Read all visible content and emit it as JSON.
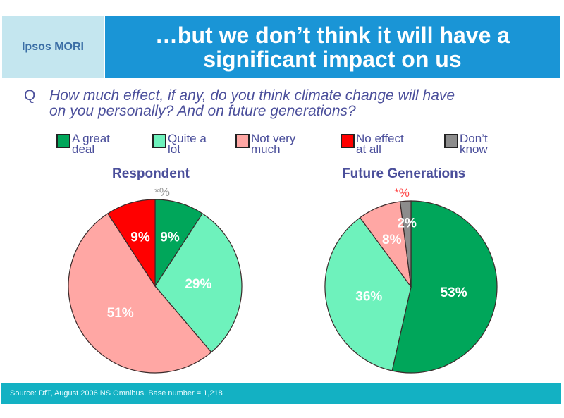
{
  "header": {
    "logo": "Ipsos MORI",
    "title_line1": "…but we don’t think it will have a",
    "title_line2": "significant impact on us"
  },
  "question": {
    "marker": "Q",
    "text_line1": "How much effect, if any, do you think climate change will have",
    "text_line2": "on you personally? And on future generations?"
  },
  "legend": [
    {
      "label_line1": "A great",
      "label_line2": "deal",
      "color": "#00a65a"
    },
    {
      "label_line1": "Quite a",
      "label_line2": "lot",
      "color": "#6ef2bc"
    },
    {
      "label_line1": "Not very",
      "label_line2": "much",
      "color": "#ffa7a4"
    },
    {
      "label_line1": "No effect",
      "label_line2": "at all",
      "color": "#ff0000"
    },
    {
      "label_line1": "Don’t",
      "label_line2": "know",
      "color": "#8c8c8c"
    }
  ],
  "footer": {
    "source": "Source:  DfT, August 2006 NS Omnibus.  Base number = 1,218"
  },
  "chart_data": [
    {
      "type": "pie",
      "title": "Respondent",
      "categories": [
        "A great deal",
        "Quite a lot",
        "Not very much",
        "No effect at all",
        "Don't know"
      ],
      "values": [
        9,
        29,
        51,
        9,
        0
      ],
      "labels": [
        "9%",
        "29%",
        "51%",
        "9%",
        "*%"
      ],
      "annotation": {
        "text": "*%",
        "color": "#9a9a9a",
        "refers_to": "Don't know"
      },
      "start": "top-clockwise"
    },
    {
      "type": "pie",
      "title": "Future Generations",
      "categories": [
        "A great deal",
        "Quite a lot",
        "Not very much",
        "No effect at all",
        "Don't know"
      ],
      "values": [
        53,
        36,
        8,
        0,
        2
      ],
      "labels": [
        "53%",
        "36%",
        "8%",
        "*%",
        "2%"
      ],
      "annotation": {
        "text": "*%",
        "color": "#ff4a4a",
        "refers_to": "No effect at all"
      },
      "start": "top-clockwise"
    }
  ]
}
